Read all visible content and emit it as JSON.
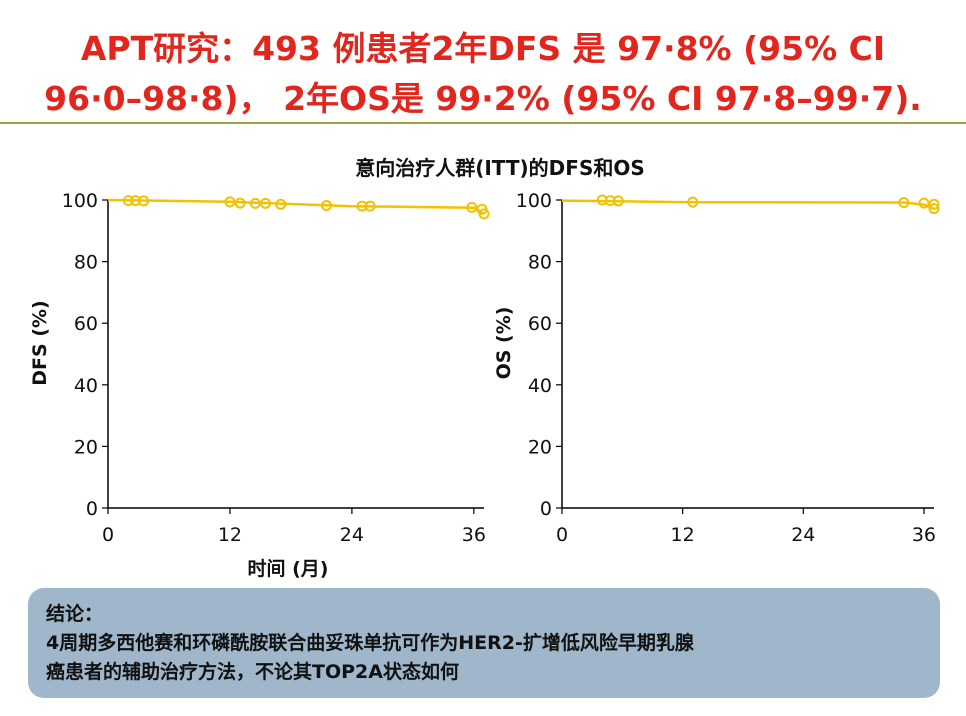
{
  "headline": {
    "line1": "APT研究：493 例患者2年DFS 是 97·8% (95% CI",
    "line2": "96·0–98·8)， 2年OS是 99·2% (95% CI 97·8–99·7)."
  },
  "chart_title": "意向治疗人群(ITT)的DFS和OS",
  "chart_data": [
    {
      "type": "line",
      "xlabel": "时间 (月)",
      "ylabel": "DFS (%)",
      "xlim": [
        0,
        37
      ],
      "ylim": [
        0,
        100
      ],
      "xticks": [
        0,
        12,
        24,
        36
      ],
      "yticks": [
        0,
        20,
        40,
        60,
        80,
        100
      ],
      "grid": false,
      "color": "#f2c200",
      "curve": [
        [
          0,
          100
        ],
        [
          12,
          99.4
        ],
        [
          24,
          98.0
        ],
        [
          36,
          97.5
        ],
        [
          36.5,
          96.5
        ],
        [
          37,
          95.5
        ]
      ],
      "censored": [
        [
          2,
          99.8
        ],
        [
          2.7,
          99.8
        ],
        [
          3.5,
          99.7
        ],
        [
          12,
          99.4
        ],
        [
          13,
          99.0
        ],
        [
          14.5,
          98.9
        ],
        [
          15.5,
          98.9
        ],
        [
          17,
          98.6
        ],
        [
          21.5,
          98.2
        ],
        [
          25,
          98.0
        ],
        [
          25.8,
          98.0
        ],
        [
          35.8,
          97.6
        ],
        [
          36.8,
          97.0
        ],
        [
          37,
          95.5
        ]
      ]
    },
    {
      "type": "line",
      "xlabel": "",
      "ylabel": "OS (%)",
      "xlim": [
        0,
        37
      ],
      "ylim": [
        0,
        100
      ],
      "xticks": [
        0,
        12,
        24,
        36
      ],
      "yticks": [
        0,
        20,
        40,
        60,
        80,
        100
      ],
      "grid": false,
      "color": "#f2c200",
      "curve": [
        [
          0,
          99.8
        ],
        [
          13,
          99.3
        ],
        [
          34,
          99.2
        ],
        [
          36,
          98.5
        ],
        [
          37,
          97.2
        ]
      ],
      "censored": [
        [
          4,
          100
        ],
        [
          4.8,
          99.8
        ],
        [
          5.6,
          99.7
        ],
        [
          13,
          99.3
        ],
        [
          34,
          99.2
        ],
        [
          36,
          99.0
        ],
        [
          37,
          98.6
        ],
        [
          37,
          97.2
        ]
      ]
    }
  ],
  "conclusion": {
    "heading": "结论：",
    "line1": "4周期多西他赛和环磷酰胺联合曲妥珠单抗可作为HER2-扩增低风险早期乳腺",
    "line2": "癌患者的辅助治疗方法，不论其TOP2A状态如何"
  }
}
